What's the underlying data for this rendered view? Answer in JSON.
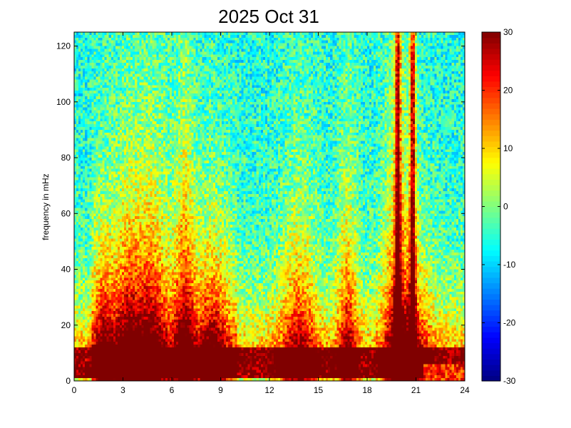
{
  "chart_data": {
    "type": "heatmap",
    "title": "2025 Oct 31",
    "xlabel": "",
    "ylabel": "frequency in mHz",
    "xlim": [
      0,
      24
    ],
    "ylim": [
      0,
      125
    ],
    "xticks": [
      0,
      3,
      6,
      9,
      12,
      15,
      18,
      21,
      24
    ],
    "xtick_labels": [
      "0",
      "3",
      "6",
      "9",
      "12",
      "15",
      "18",
      "21",
      "24"
    ],
    "yticks": [
      0,
      20,
      40,
      60,
      80,
      100,
      120
    ],
    "ytick_labels": [
      "0",
      "20",
      "40",
      "60",
      "80",
      "100",
      "120"
    ],
    "colorbar": {
      "colormap": "jet",
      "range": [
        -30,
        30
      ],
      "ticks": [
        -30,
        -20,
        -10,
        0,
        10,
        20,
        30
      ],
      "tick_labels": [
        "-30",
        "-20",
        "-10",
        "0",
        "10",
        "20",
        "30"
      ]
    },
    "grid": false,
    "description_of_values": {
      "background_level_high_freq": -5,
      "low_freq_band_0_15_mHz": 28,
      "burst_events_hours": [
        1.8,
        3.2,
        4.7,
        6.8,
        8.5,
        13.8,
        16.8,
        19.8,
        20.8
      ],
      "strong_vertical_streaks_hours": [
        19.9,
        20.8
      ]
    }
  }
}
